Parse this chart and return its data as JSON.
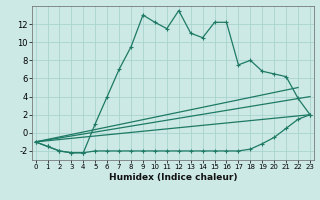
{
  "xlabel": "Humidex (Indice chaleur)",
  "x_ticks": [
    0,
    1,
    2,
    3,
    4,
    5,
    6,
    7,
    8,
    9,
    10,
    11,
    12,
    13,
    14,
    15,
    16,
    17,
    18,
    19,
    20,
    21,
    22,
    23
  ],
  "xlim": [
    0,
    23
  ],
  "ylim": [
    -3.0,
    14.0
  ],
  "y_ticks": [
    -2,
    0,
    2,
    4,
    6,
    8,
    10,
    12
  ],
  "bg_color": "#cce9e5",
  "grid_color": "#aad4cf",
  "line_color": "#1e7a65",
  "main_curve_x": [
    0,
    1,
    2,
    3,
    4,
    5,
    6,
    7,
    8,
    9,
    10,
    11,
    12,
    13,
    14,
    15,
    16,
    17,
    18,
    19,
    20,
    21,
    22,
    23
  ],
  "main_curve_y": [
    -1.0,
    -1.5,
    -2.0,
    -2.2,
    -2.2,
    1.0,
    4.0,
    7.0,
    9.5,
    13.0,
    12.2,
    11.5,
    13.5,
    11.0,
    10.5,
    12.2,
    12.2,
    7.5,
    8.0,
    6.8,
    6.5,
    6.2,
    3.8,
    2.0
  ],
  "lower_curve_x": [
    0,
    1,
    2,
    3,
    4,
    5,
    6,
    7,
    8,
    9,
    10,
    11,
    12,
    13,
    14,
    15,
    16,
    17,
    18,
    19,
    20,
    21,
    22,
    23
  ],
  "lower_curve_y": [
    -1.0,
    -1.5,
    -2.0,
    -2.2,
    -2.2,
    -2.0,
    -2.0,
    -2.0,
    -2.0,
    -2.0,
    -2.0,
    -2.0,
    -2.0,
    -2.0,
    -2.0,
    -2.0,
    -2.0,
    -2.0,
    -1.8,
    -1.2,
    -0.5,
    0.5,
    1.5,
    2.0
  ],
  "line1_x": [
    0,
    23
  ],
  "line1_y": [
    -1.0,
    2.0
  ],
  "line2_x": [
    0,
    23
  ],
  "line2_y": [
    -1.0,
    4.0
  ],
  "line3_x": [
    0,
    22
  ],
  "line3_y": [
    -1.0,
    5.0
  ]
}
